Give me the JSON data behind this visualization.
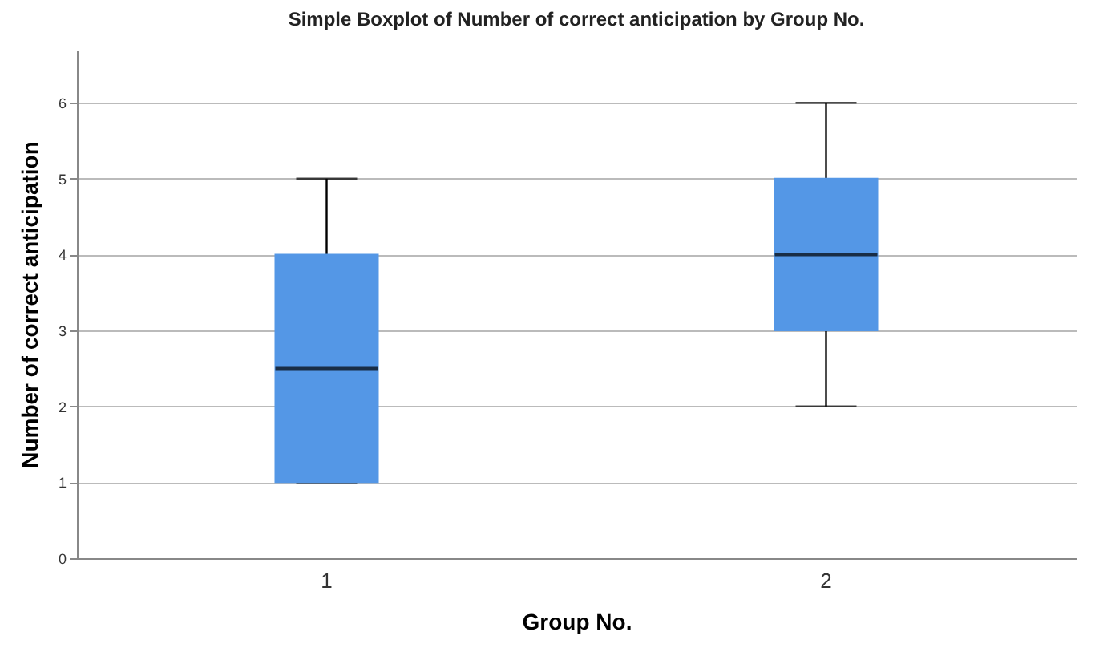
{
  "chart_data": {
    "type": "box",
    "title": "Simple Boxplot of Number of correct anticipation by Group No.",
    "xlabel": "Group No.",
    "ylabel": "Number of correct anticipation",
    "categories": [
      "1",
      "2"
    ],
    "boxes": [
      {
        "low": 1,
        "q1": 1,
        "median": 2.5,
        "q3": 4,
        "high": 5
      },
      {
        "low": 2,
        "q1": 3,
        "median": 4,
        "q3": 5,
        "high": 6
      }
    ],
    "color": "#5497e6",
    "ylim": [
      0,
      6.7
    ],
    "yticks": [
      0,
      1,
      2,
      3,
      4,
      5,
      6
    ],
    "grid": "y"
  }
}
